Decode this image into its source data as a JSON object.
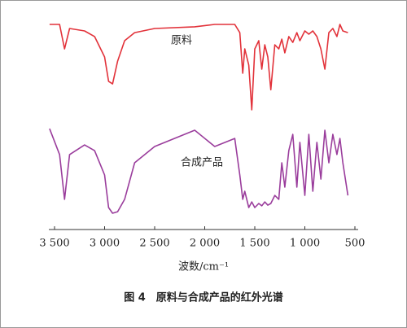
{
  "chart_data": {
    "type": "line",
    "xlabel": "波数/cm⁻¹",
    "caption": "图 4　原料与合成产品的红外光谱",
    "x": [
      3550,
      3450,
      3400,
      3350,
      3200,
      3100,
      3000,
      2960,
      2920,
      2870,
      2800,
      2700,
      2500,
      2100,
      1900,
      1700,
      1650,
      1620,
      1600,
      1560,
      1530,
      1500,
      1460,
      1430,
      1400,
      1370,
      1340,
      1300,
      1260,
      1230,
      1200,
      1160,
      1120,
      1080,
      1050,
      1000,
      960,
      920,
      880,
      840,
      800,
      760,
      720,
      680,
      650,
      620,
      570
    ],
    "series": [
      {
        "name": "原料",
        "color": "#e2323a",
        "values": [
          94.4,
          94.4,
          83.1,
          92.5,
          91.4,
          88.8,
          79.4,
          68.2,
          67.0,
          77.5,
          86.9,
          90.6,
          92.5,
          93.3,
          94.4,
          94.4,
          90.6,
          71.9,
          83.1,
          75.7,
          55.1,
          83.1,
          86.9,
          73.8,
          85.0,
          79.4,
          64.3,
          85.0,
          83.1,
          87.6,
          81.3,
          88.8,
          86.1,
          90.6,
          86.9,
          91.4,
          89.9,
          91.4,
          88.8,
          83.1,
          73.8,
          90.6,
          92.5,
          88.8,
          94.4,
          91.4,
          90.6
        ]
      },
      {
        "name": "合成产品",
        "color": "#9a3d9c",
        "values": [
          46.4,
          34.5,
          13.9,
          34.5,
          38.9,
          36.3,
          25.1,
          10.1,
          7.5,
          8.2,
          13.9,
          30.7,
          38.2,
          45.7,
          38.2,
          41.9,
          25.1,
          13.9,
          17.6,
          10.1,
          12.7,
          10.1,
          12.0,
          10.9,
          12.7,
          11.2,
          12.0,
          15.7,
          13.9,
          30.7,
          19.5,
          36.3,
          43.8,
          19.5,
          40.1,
          15.7,
          43.8,
          17.6,
          40.1,
          23.2,
          45.7,
          30.7,
          43.8,
          34.5,
          41.9,
          30.7,
          15.7
        ]
      }
    ],
    "xlim": [
      3500,
      500
    ],
    "xticks": [
      {
        "value": 3500,
        "label": "3 500"
      },
      {
        "value": 3000,
        "label": "3 000"
      },
      {
        "value": 2500,
        "label": "2 500"
      },
      {
        "value": 2000,
        "label": "2 000"
      },
      {
        "value": 1500,
        "label": "1 500"
      },
      {
        "value": 1000,
        "label": "1 000"
      },
      500
    ],
    "ylim": [
      0,
      100
    ]
  }
}
